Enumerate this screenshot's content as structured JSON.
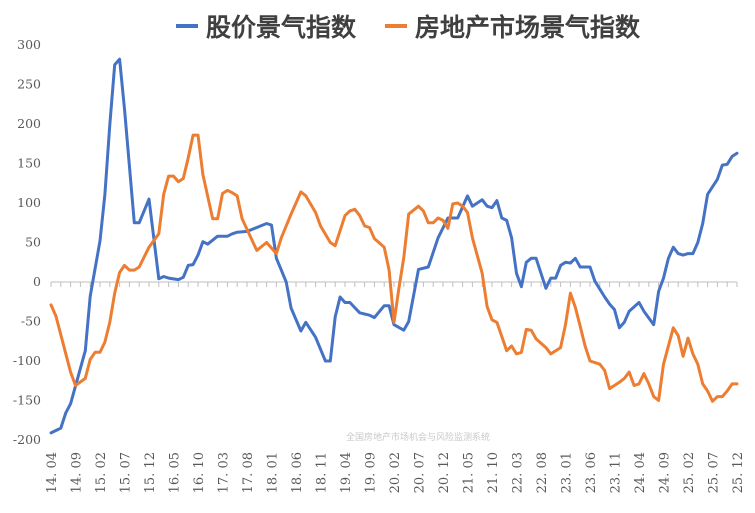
{
  "chart_data": {
    "type": "line",
    "title": "",
    "xlabel": "",
    "ylabel": "",
    "ylim": [
      -200,
      300
    ],
    "yticks": [
      300,
      250,
      200,
      150,
      100,
      50,
      0,
      -50,
      -100,
      -150,
      -200
    ],
    "xrange": [
      "2014-04",
      "2025-12"
    ],
    "xtick_labels": [
      "14.04",
      "14.09",
      "15.02",
      "15.07",
      "15.12",
      "16.05",
      "16.10",
      "17.03",
      "17.08",
      "18.01",
      "18.06",
      "18.11",
      "19.04",
      "19.09",
      "20.02",
      "20.07",
      "20.12",
      "21.05",
      "21.10",
      "22.03",
      "22.08",
      "23.01",
      "23.06",
      "23.11",
      "24.04",
      "24.09",
      "25.02",
      "25.07",
      "25.12"
    ],
    "grid": false,
    "legend_placement": "top",
    "watermark": "全国房地产市场机会与风险监测系统",
    "series": [
      {
        "name": "股价景气指数",
        "color": "#4472C4",
        "points": [
          [
            "2014-04",
            -191
          ],
          [
            "2014-06",
            -185
          ],
          [
            "2014-07",
            -166
          ],
          [
            "2014-08",
            -154
          ],
          [
            "2014-11",
            -87
          ],
          [
            "2014-12",
            -18
          ],
          [
            "2015-02",
            52
          ],
          [
            "2015-03",
            111
          ],
          [
            "2015-04",
            199
          ],
          [
            "2015-05",
            275
          ],
          [
            "2015-06",
            282
          ],
          [
            "2015-07",
            219
          ],
          [
            "2015-09",
            75
          ],
          [
            "2015-10",
            75
          ],
          [
            "2015-12",
            105
          ],
          [
            "2016-02",
            4
          ],
          [
            "2016-03",
            7
          ],
          [
            "2016-04",
            5
          ],
          [
            "2016-06",
            3
          ],
          [
            "2016-07",
            6
          ],
          [
            "2016-08",
            21
          ],
          [
            "2016-09",
            22
          ],
          [
            "2016-10",
            34
          ],
          [
            "2016-11",
            51
          ],
          [
            "2016-12",
            48
          ],
          [
            "2017-02",
            58
          ],
          [
            "2017-04",
            58
          ],
          [
            "2017-05",
            61
          ],
          [
            "2017-06",
            63
          ],
          [
            "2017-08",
            64
          ],
          [
            "2017-10",
            69
          ],
          [
            "2017-12",
            74
          ],
          [
            "2018-01",
            72
          ],
          [
            "2018-02",
            30
          ],
          [
            "2018-03",
            15
          ],
          [
            "2018-04",
            0
          ],
          [
            "2018-05",
            -33
          ],
          [
            "2018-07",
            -62
          ],
          [
            "2018-08",
            -51
          ],
          [
            "2018-10",
            -70
          ],
          [
            "2018-12",
            -100
          ],
          [
            "2019-01",
            -100
          ],
          [
            "2019-02",
            -44
          ],
          [
            "2019-03",
            -19
          ],
          [
            "2019-04",
            -26
          ],
          [
            "2019-05",
            -26
          ],
          [
            "2019-07",
            -39
          ],
          [
            "2019-09",
            -42
          ],
          [
            "2019-10",
            -45
          ],
          [
            "2019-12",
            -30
          ],
          [
            "2020-01",
            -30
          ],
          [
            "2020-02",
            -54
          ],
          [
            "2020-04",
            -61
          ],
          [
            "2020-05",
            -50
          ],
          [
            "2020-07",
            16
          ],
          [
            "2020-09",
            19
          ],
          [
            "2020-11",
            56
          ],
          [
            "2021-01",
            81
          ],
          [
            "2021-03",
            81
          ],
          [
            "2021-05",
            109
          ],
          [
            "2021-06",
            96
          ],
          [
            "2021-08",
            104
          ],
          [
            "2021-09",
            96
          ],
          [
            "2021-10",
            94
          ],
          [
            "2021-11",
            103
          ],
          [
            "2021-12",
            81
          ],
          [
            "2022-01",
            78
          ],
          [
            "2022-02",
            56
          ],
          [
            "2022-03",
            11
          ],
          [
            "2022-04",
            -6
          ],
          [
            "2022-05",
            25
          ],
          [
            "2022-06",
            30
          ],
          [
            "2022-07",
            30
          ],
          [
            "2022-09",
            -8
          ],
          [
            "2022-10",
            5
          ],
          [
            "2022-11",
            5
          ],
          [
            "2022-12",
            21
          ],
          [
            "2023-01",
            25
          ],
          [
            "2023-02",
            24
          ],
          [
            "2023-03",
            30
          ],
          [
            "2023-04",
            19
          ],
          [
            "2023-06",
            19
          ],
          [
            "2023-07",
            1
          ],
          [
            "2023-09",
            -19
          ],
          [
            "2023-10",
            -28
          ],
          [
            "2023-11",
            -35
          ],
          [
            "2023-12",
            -58
          ],
          [
            "2024-01",
            -51
          ],
          [
            "2024-02",
            -37
          ],
          [
            "2024-04",
            -26
          ],
          [
            "2024-05",
            -37
          ],
          [
            "2024-07",
            -54
          ],
          [
            "2024-08",
            -12
          ],
          [
            "2024-09",
            5
          ],
          [
            "2024-10",
            30
          ],
          [
            "2024-11",
            44
          ],
          [
            "2024-12",
            36
          ],
          [
            "2025-01",
            34
          ],
          [
            "2025-02",
            36
          ],
          [
            "2025-03",
            36
          ],
          [
            "2025-04",
            50
          ],
          [
            "2025-05",
            74
          ],
          [
            "2025-06",
            111
          ],
          [
            "2025-08",
            130
          ],
          [
            "2025-09",
            148
          ],
          [
            "2025-10",
            149
          ],
          [
            "2025-11",
            159
          ],
          [
            "2025-12",
            163
          ]
        ]
      },
      {
        "name": "房地产市场景气指数",
        "color": "#ED7D31",
        "points": [
          [
            "2014-04",
            -29
          ],
          [
            "2014-05",
            -43
          ],
          [
            "2014-08",
            -114
          ],
          [
            "2014-09",
            -131
          ],
          [
            "2014-11",
            -122
          ],
          [
            "2014-12",
            -98
          ],
          [
            "2015-01",
            -89
          ],
          [
            "2015-02",
            -89
          ],
          [
            "2015-03",
            -76
          ],
          [
            "2015-04",
            -51
          ],
          [
            "2015-05",
            -14
          ],
          [
            "2015-06",
            12
          ],
          [
            "2015-07",
            21
          ],
          [
            "2015-08",
            15
          ],
          [
            "2015-09",
            15
          ],
          [
            "2015-10",
            19
          ],
          [
            "2015-12",
            44
          ],
          [
            "2016-02",
            61
          ],
          [
            "2016-03",
            111
          ],
          [
            "2016-04",
            134
          ],
          [
            "2016-05",
            134
          ],
          [
            "2016-06",
            127
          ],
          [
            "2016-07",
            131
          ],
          [
            "2016-08",
            157
          ],
          [
            "2016-09",
            186
          ],
          [
            "2016-10",
            186
          ],
          [
            "2016-11",
            136
          ],
          [
            "2017-01",
            80
          ],
          [
            "2017-02",
            80
          ],
          [
            "2017-03",
            112
          ],
          [
            "2017-04",
            116
          ],
          [
            "2017-05",
            113
          ],
          [
            "2017-06",
            109
          ],
          [
            "2017-07",
            80
          ],
          [
            "2017-10",
            40
          ],
          [
            "2017-12",
            50
          ],
          [
            "2018-02",
            36
          ],
          [
            "2018-03",
            56
          ],
          [
            "2018-05",
            86
          ],
          [
            "2018-06",
            100
          ],
          [
            "2018-07",
            114
          ],
          [
            "2018-08",
            109
          ],
          [
            "2018-10",
            88
          ],
          [
            "2018-11",
            71
          ],
          [
            "2019-01",
            50
          ],
          [
            "2019-02",
            46
          ],
          [
            "2019-04",
            84
          ],
          [
            "2019-05",
            90
          ],
          [
            "2019-06",
            92
          ],
          [
            "2019-07",
            84
          ],
          [
            "2019-08",
            71
          ],
          [
            "2019-09",
            69
          ],
          [
            "2019-10",
            55
          ],
          [
            "2019-12",
            44
          ],
          [
            "2020-01",
            15
          ],
          [
            "2020-02",
            -51
          ],
          [
            "2020-03",
            -8
          ],
          [
            "2020-04",
            31
          ],
          [
            "2020-05",
            86
          ],
          [
            "2020-07",
            96
          ],
          [
            "2020-08",
            90
          ],
          [
            "2020-09",
            75
          ],
          [
            "2020-10",
            75
          ],
          [
            "2020-11",
            81
          ],
          [
            "2020-12",
            78
          ],
          [
            "2021-01",
            68
          ],
          [
            "2021-02",
            99
          ],
          [
            "2021-03",
            100
          ],
          [
            "2021-04",
            96
          ],
          [
            "2021-05",
            88
          ],
          [
            "2021-06",
            56
          ],
          [
            "2021-08",
            11
          ],
          [
            "2021-09",
            -31
          ],
          [
            "2021-10",
            -48
          ],
          [
            "2021-11",
            -51
          ],
          [
            "2021-12",
            -69
          ],
          [
            "2022-01",
            -87
          ],
          [
            "2022-02",
            -81
          ],
          [
            "2022-03",
            -91
          ],
          [
            "2022-04",
            -89
          ],
          [
            "2022-05",
            -60
          ],
          [
            "2022-06",
            -61
          ],
          [
            "2022-07",
            -72
          ],
          [
            "2022-09",
            -83
          ],
          [
            "2022-10",
            -91
          ],
          [
            "2022-12",
            -83
          ],
          [
            "2023-01",
            -54
          ],
          [
            "2023-02",
            -14
          ],
          [
            "2023-03",
            -32
          ],
          [
            "2023-04",
            -56
          ],
          [
            "2023-05",
            -81
          ],
          [
            "2023-06",
            -100
          ],
          [
            "2023-07",
            -102
          ],
          [
            "2023-08",
            -104
          ],
          [
            "2023-09",
            -112
          ],
          [
            "2023-10",
            -135
          ],
          [
            "2023-12",
            -127
          ],
          [
            "2024-01",
            -122
          ],
          [
            "2024-02",
            -114
          ],
          [
            "2024-03",
            -131
          ],
          [
            "2024-04",
            -129
          ],
          [
            "2024-05",
            -116
          ],
          [
            "2024-06",
            -129
          ],
          [
            "2024-07",
            -145
          ],
          [
            "2024-08",
            -150
          ],
          [
            "2024-09",
            -104
          ],
          [
            "2024-11",
            -58
          ],
          [
            "2024-12",
            -68
          ],
          [
            "2025-01",
            -94
          ],
          [
            "2025-02",
            -71
          ],
          [
            "2025-03",
            -91
          ],
          [
            "2025-04",
            -104
          ],
          [
            "2025-05",
            -129
          ],
          [
            "2025-06",
            -138
          ],
          [
            "2025-07",
            -151
          ],
          [
            "2025-08",
            -145
          ],
          [
            "2025-09",
            -145
          ],
          [
            "2025-10",
            -138
          ],
          [
            "2025-11",
            -129
          ],
          [
            "2025-12",
            -129
          ]
        ]
      }
    ]
  }
}
